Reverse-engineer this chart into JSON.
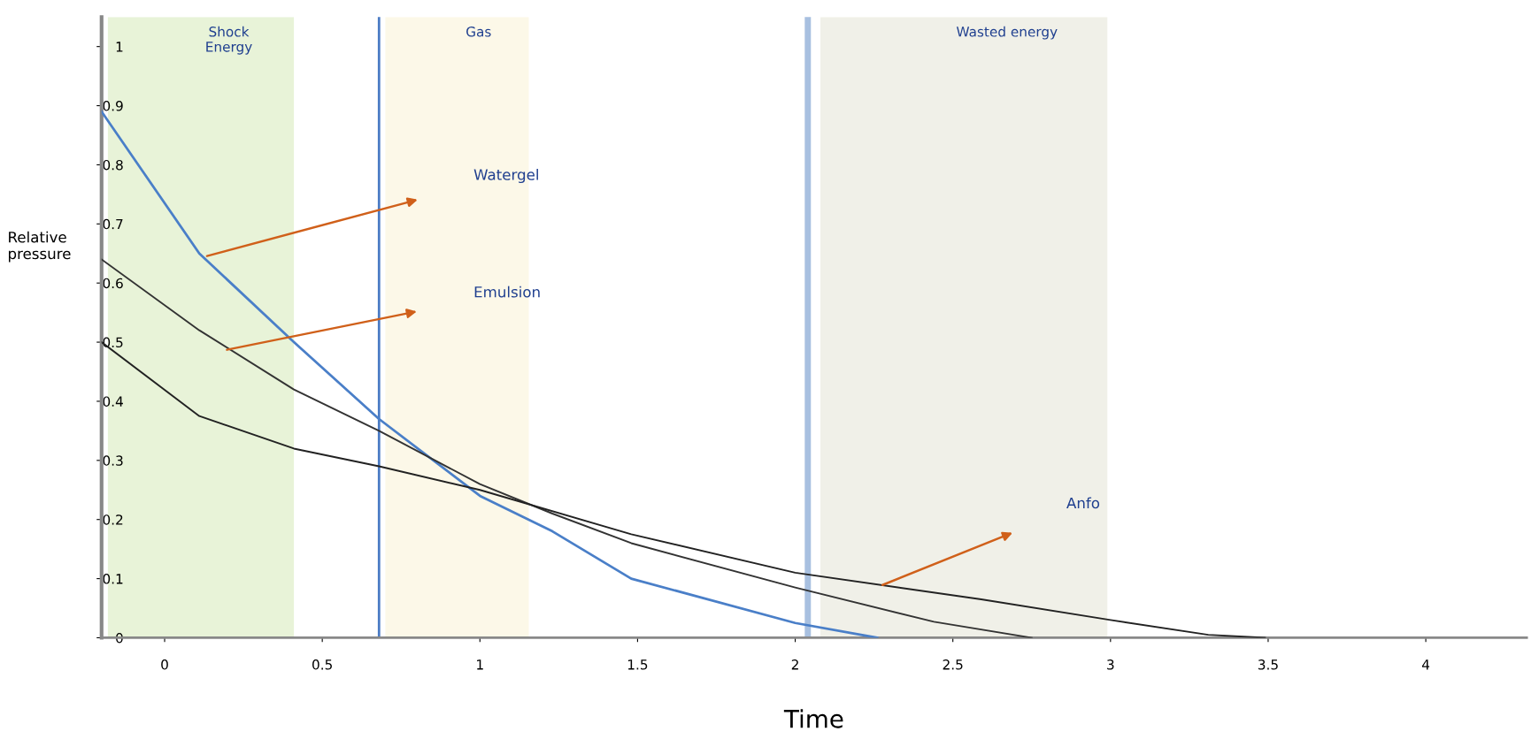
{
  "chart_data": {
    "type": "line",
    "xlabel": "Time",
    "ylabel": "Relative\npressure",
    "xlim": [
      -0.2,
      4.32
    ],
    "ylim": [
      0,
      1.05
    ],
    "xticks": [
      0,
      0.5,
      1,
      1.5,
      2,
      2.5,
      3,
      3.5,
      4
    ],
    "yticks": [
      0,
      0.1,
      0.2,
      0.3,
      0.4,
      0.5,
      0.6,
      0.7,
      0.8,
      0.9,
      1
    ],
    "grid": false,
    "legend": false,
    "marker": "none",
    "line_style": "solid",
    "series": [
      {
        "color": "#4a7fc8",
        "x": [
          -0.2,
          0.11,
          0.41,
          0.68,
          1.0,
          1.23,
          1.48,
          2.0,
          2.26
        ],
        "values": [
          0.89,
          0.65,
          0.5,
          0.37,
          0.24,
          0.18,
          0.1,
          0.025,
          0
        ]
      },
      {
        "color": "#333333",
        "x": [
          -0.2,
          0.11,
          0.41,
          0.68,
          1.0,
          1.23,
          1.48,
          2.0,
          2.44,
          2.75
        ],
        "values": [
          0.64,
          0.52,
          0.42,
          0.35,
          0.26,
          0.21,
          0.16,
          0.085,
          0.027,
          0
        ]
      },
      {
        "color": "#222222",
        "x": [
          -0.2,
          0.11,
          0.41,
          0.68,
          1.0,
          1.48,
          2.0,
          2.59,
          3.0,
          3.31,
          3.49
        ],
        "values": [
          0.5,
          0.375,
          0.32,
          0.29,
          0.25,
          0.175,
          0.11,
          0.065,
          0.03,
          0.005,
          0
        ]
      }
    ],
    "bands": [
      {
        "axis": "x",
        "from": -0.18,
        "to": 0.41,
        "label": "Shock\nEnergy",
        "color": "#e8f3d8"
      },
      {
        "axis": "x",
        "from": 0.7,
        "to": 1.155,
        "label": "Gas",
        "color": "#fcf8e8"
      },
      {
        "axis": "x",
        "from": 2.08,
        "to": 2.99,
        "label": "Wasted energy",
        "color": "#f0f0e8"
      }
    ],
    "ref_lines": [
      {
        "axis": "x",
        "value": 0.68,
        "color": "#4a7bc4",
        "line_style": "solid"
      },
      {
        "axis": "x",
        "value": 2.04,
        "color": "#a8c0e0",
        "line_style": "solid"
      }
    ],
    "annotations": [
      "Watergel",
      "Emulsion",
      "Anfo"
    ]
  }
}
